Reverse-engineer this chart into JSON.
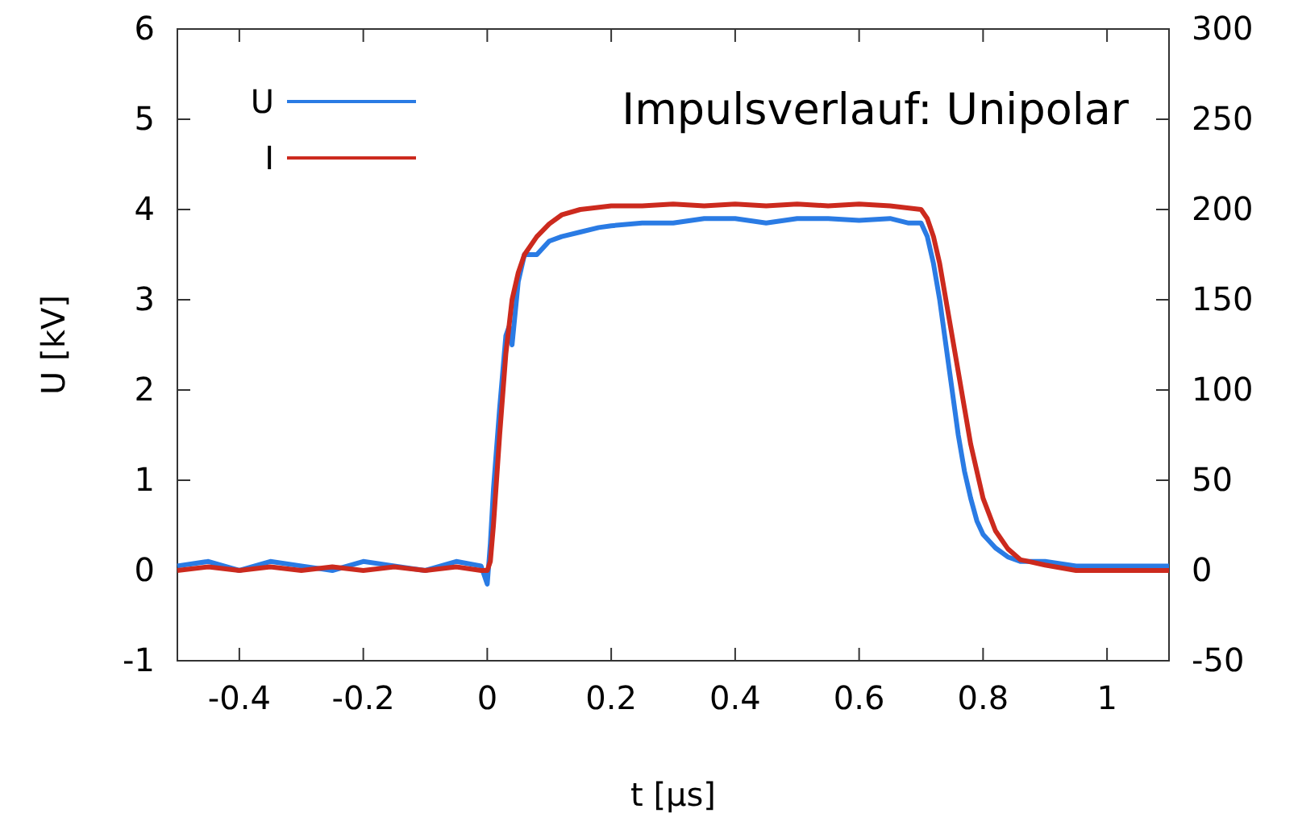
{
  "chart_data": {
    "type": "line",
    "title": "Impulsverlauf: Unipolar",
    "xlabel": "t [μs]",
    "ylabel": "U [kV]",
    "xlim": [
      -0.5,
      1.1
    ],
    "xticks": [
      -0.4,
      -0.2,
      0,
      0.2,
      0.4,
      0.6,
      0.8,
      1
    ],
    "ylim": [
      -1,
      6
    ],
    "yticks": [
      -1,
      0,
      1,
      2,
      3,
      4,
      5,
      6
    ],
    "y2lim": [
      -50,
      300
    ],
    "y2ticks": [
      -50,
      0,
      50,
      100,
      150,
      200,
      250,
      300
    ],
    "grid": false,
    "legend": "top left",
    "marker": "none",
    "line_style": "solid",
    "series": [
      {
        "name": "U",
        "color": "#2a7be4",
        "x": [
          -0.5,
          -0.45,
          -0.4,
          -0.35,
          -0.3,
          -0.25,
          -0.2,
          -0.15,
          -0.1,
          -0.05,
          -0.01,
          0,
          0.005,
          0.01,
          0.02,
          0.03,
          0.035,
          0.04,
          0.05,
          0.06,
          0.08,
          0.1,
          0.12,
          0.15,
          0.18,
          0.2,
          0.25,
          0.3,
          0.35,
          0.4,
          0.45,
          0.5,
          0.55,
          0.6,
          0.65,
          0.68,
          0.7,
          0.71,
          0.72,
          0.73,
          0.74,
          0.75,
          0.76,
          0.77,
          0.78,
          0.79,
          0.8,
          0.82,
          0.84,
          0.86,
          0.9,
          0.95,
          1,
          1.05,
          1.1
        ],
        "values": [
          0.05,
          0.1,
          0.0,
          0.1,
          0.05,
          0.0,
          0.1,
          0.05,
          0.0,
          0.1,
          0.05,
          -0.15,
          0.3,
          0.9,
          1.8,
          2.6,
          2.7,
          2.5,
          3.2,
          3.5,
          3.5,
          3.65,
          3.7,
          3.75,
          3.8,
          3.82,
          3.85,
          3.85,
          3.9,
          3.9,
          3.85,
          3.9,
          3.9,
          3.88,
          3.9,
          3.85,
          3.85,
          3.7,
          3.4,
          3.0,
          2.5,
          2.0,
          1.5,
          1.1,
          0.8,
          0.55,
          0.4,
          0.25,
          0.15,
          0.1,
          0.1,
          0.05,
          0.05,
          0.05,
          0.05
        ]
      },
      {
        "name": "I",
        "color": "#cc2a1e",
        "axis": "y2",
        "x": [
          -0.5,
          -0.45,
          -0.4,
          -0.35,
          -0.3,
          -0.25,
          -0.2,
          -0.15,
          -0.1,
          -0.05,
          -0.01,
          0,
          0.005,
          0.01,
          0.02,
          0.03,
          0.04,
          0.05,
          0.06,
          0.08,
          0.1,
          0.12,
          0.15,
          0.2,
          0.25,
          0.3,
          0.35,
          0.4,
          0.45,
          0.5,
          0.55,
          0.6,
          0.65,
          0.7,
          0.71,
          0.72,
          0.73,
          0.74,
          0.75,
          0.76,
          0.77,
          0.78,
          0.79,
          0.8,
          0.82,
          0.84,
          0.86,
          0.9,
          0.95,
          1,
          1.05,
          1.1
        ],
        "values": [
          0,
          2,
          0,
          2,
          0,
          2,
          0,
          2,
          0,
          2,
          0,
          0,
          5,
          25,
          75,
          120,
          150,
          165,
          175,
          185,
          192,
          197,
          200,
          202,
          202,
          203,
          202,
          203,
          202,
          203,
          202,
          203,
          202,
          200,
          195,
          185,
          170,
          150,
          130,
          110,
          90,
          70,
          55,
          40,
          22,
          12,
          6,
          3,
          0,
          0,
          0,
          0
        ]
      }
    ]
  }
}
